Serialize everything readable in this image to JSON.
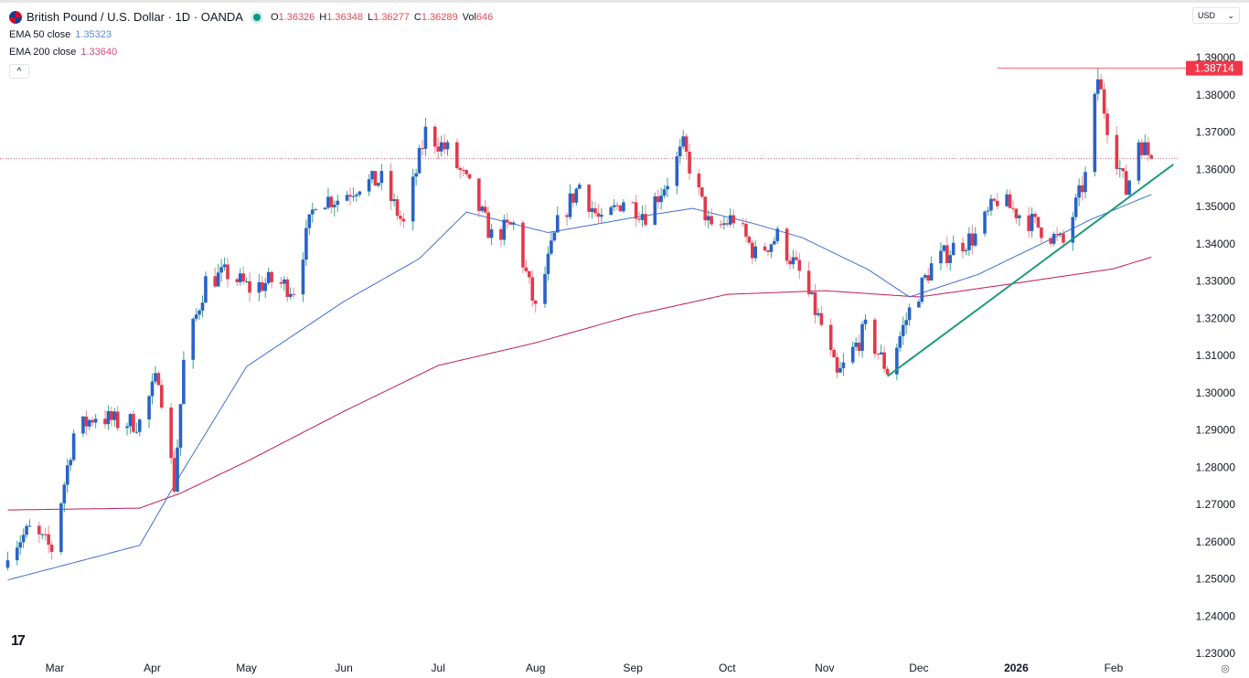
{
  "header": {
    "symbol": "British Pound / U.S. Dollar · 1D · OANDA",
    "o_label": "O",
    "o": "1.36326",
    "h_label": "H",
    "h": "1.36348",
    "l_label": "L",
    "l": "1.36277",
    "c_label": "C",
    "c": "1.36289",
    "vol_label": "Vol",
    "vol": "646",
    "ema50_label": "EMA 50 close",
    "ema50": "1.35323",
    "ema200_label": "EMA 200 close",
    "ema200": "1.33640",
    "collapse_icon": "chevron-up-icon"
  },
  "currency_select": "USD",
  "colors": {
    "up": "#2962c9",
    "down": "#e2394b",
    "ema50": "#3f6fd1",
    "ema200": "#c2185b",
    "trendline": "#1c9b74",
    "level": "#f2364a"
  },
  "chart_data": {
    "type": "candlestick",
    "price_label": "1.38714",
    "yticks": [
      "1.39000",
      "1.38000",
      "1.37000",
      "1.36000",
      "1.35000",
      "1.34000",
      "1.33000",
      "1.32000",
      "1.31000",
      "1.30000",
      "1.29000",
      "1.28000",
      "1.27000",
      "1.26000",
      "1.25000",
      "1.24000",
      "1.23000"
    ],
    "ylim": [
      1.23,
      1.39
    ],
    "xticks": [
      {
        "date": "2025-03-01",
        "label": "Mar"
      },
      {
        "date": "2025-04-01",
        "label": "Apr"
      },
      {
        "date": "2025-05-01",
        "label": "May"
      },
      {
        "date": "2025-06-01",
        "label": "Jun"
      },
      {
        "date": "2025-07-01",
        "label": "Jul"
      },
      {
        "date": "2025-08-01",
        "label": "Aug"
      },
      {
        "date": "2025-09-01",
        "label": "Sep"
      },
      {
        "date": "2025-10-01",
        "label": "Oct"
      },
      {
        "date": "2025-11-01",
        "label": "Nov"
      },
      {
        "date": "2025-12-01",
        "label": "Dec"
      },
      {
        "date": "2026-01-01",
        "label": "2026"
      },
      {
        "date": "2026-02-01",
        "label": "Feb"
      }
    ],
    "close_path": [
      [
        "2025-02-14",
        1.258
      ],
      [
        "2025-02-21",
        1.263
      ],
      [
        "2025-02-28",
        1.258
      ],
      [
        "2025-03-07",
        1.289
      ],
      [
        "2025-03-14",
        1.294
      ],
      [
        "2025-03-21",
        1.292
      ],
      [
        "2025-03-28",
        1.292
      ],
      [
        "2025-04-03",
        1.305
      ],
      [
        "2025-04-08",
        1.275
      ],
      [
        "2025-04-11",
        1.308
      ],
      [
        "2025-04-18",
        1.33
      ],
      [
        "2025-04-25",
        1.332
      ],
      [
        "2025-05-02",
        1.328
      ],
      [
        "2025-05-09",
        1.33
      ],
      [
        "2025-05-16",
        1.328
      ],
      [
        "2025-05-23",
        1.352
      ],
      [
        "2025-05-30",
        1.352
      ],
      [
        "2025-06-06",
        1.356
      ],
      [
        "2025-06-13",
        1.357
      ],
      [
        "2025-06-20",
        1.345
      ],
      [
        "2025-06-27",
        1.37
      ],
      [
        "2025-07-04",
        1.365
      ],
      [
        "2025-07-11",
        1.355
      ],
      [
        "2025-07-18",
        1.342
      ],
      [
        "2025-07-25",
        1.345
      ],
      [
        "2025-08-01",
        1.322
      ],
      [
        "2025-08-08",
        1.345
      ],
      [
        "2025-08-15",
        1.356
      ],
      [
        "2025-08-22",
        1.345
      ],
      [
        "2025-08-29",
        1.352
      ],
      [
        "2025-09-05",
        1.348
      ],
      [
        "2025-09-12",
        1.357
      ],
      [
        "2025-09-17",
        1.366
      ],
      [
        "2025-09-26",
        1.343
      ],
      [
        "2025-10-03",
        1.347
      ],
      [
        "2025-10-10",
        1.337
      ],
      [
        "2025-10-17",
        1.342
      ],
      [
        "2025-10-24",
        1.332
      ],
      [
        "2025-10-31",
        1.318
      ],
      [
        "2025-11-05",
        1.304
      ],
      [
        "2025-11-14",
        1.317
      ],
      [
        "2025-11-21",
        1.306
      ],
      [
        "2025-11-28",
        1.322
      ],
      [
        "2025-12-05",
        1.334
      ],
      [
        "2025-12-12",
        1.339
      ],
      [
        "2025-12-19",
        1.342
      ],
      [
        "2025-12-26",
        1.352
      ],
      [
        "2026-01-02",
        1.348
      ],
      [
        "2026-01-09",
        1.344
      ],
      [
        "2026-01-16",
        1.34
      ],
      [
        "2026-01-23",
        1.358
      ],
      [
        "2026-01-27",
        1.3845
      ],
      [
        "2026-01-30",
        1.372
      ],
      [
        "2026-02-05",
        1.354
      ],
      [
        "2026-02-09",
        1.368
      ],
      [
        "2026-02-13",
        1.36289
      ]
    ],
    "max_high": {
      "date": "2026-01-27",
      "value": 1.38714
    },
    "ema50": [
      [
        "2025-02-14",
        1.2497
      ],
      [
        "2025-03-28",
        1.259
      ],
      [
        "2025-04-10",
        1.278
      ],
      [
        "2025-05-01",
        1.307
      ],
      [
        "2025-06-01",
        1.3245
      ],
      [
        "2025-06-25",
        1.336
      ],
      [
        "2025-07-10",
        1.3485
      ],
      [
        "2025-08-05",
        1.343
      ],
      [
        "2025-09-01",
        1.347
      ],
      [
        "2025-09-20",
        1.3495
      ],
      [
        "2025-10-10",
        1.3453
      ],
      [
        "2025-10-25",
        1.3416
      ],
      [
        "2025-11-15",
        1.333
      ],
      [
        "2025-11-28",
        1.3257
      ],
      [
        "2025-12-20",
        1.3318
      ],
      [
        "2026-01-10",
        1.3404
      ],
      [
        "2026-01-25",
        1.3466
      ],
      [
        "2026-02-13",
        1.35323
      ]
    ],
    "ema200": [
      [
        "2025-02-14",
        1.2685
      ],
      [
        "2025-03-28",
        1.269
      ],
      [
        "2025-04-10",
        1.273
      ],
      [
        "2025-05-01",
        1.2815
      ],
      [
        "2025-06-01",
        1.295
      ],
      [
        "2025-07-01",
        1.3073
      ],
      [
        "2025-08-01",
        1.3134
      ],
      [
        "2025-09-01",
        1.3208
      ],
      [
        "2025-10-01",
        1.3264
      ],
      [
        "2025-11-01",
        1.3274
      ],
      [
        "2025-12-01",
        1.3257
      ],
      [
        "2026-01-01",
        1.3294
      ],
      [
        "2026-02-01",
        1.3333
      ],
      [
        "2026-02-13",
        1.3364
      ]
    ],
    "trendline": [
      [
        "2025-11-21",
        1.3044
      ],
      [
        "2026-02-20",
        1.3613
      ]
    ],
    "resistance": {
      "from": "2025-12-26",
      "value": 1.38714
    },
    "last_price": 1.36289
  }
}
